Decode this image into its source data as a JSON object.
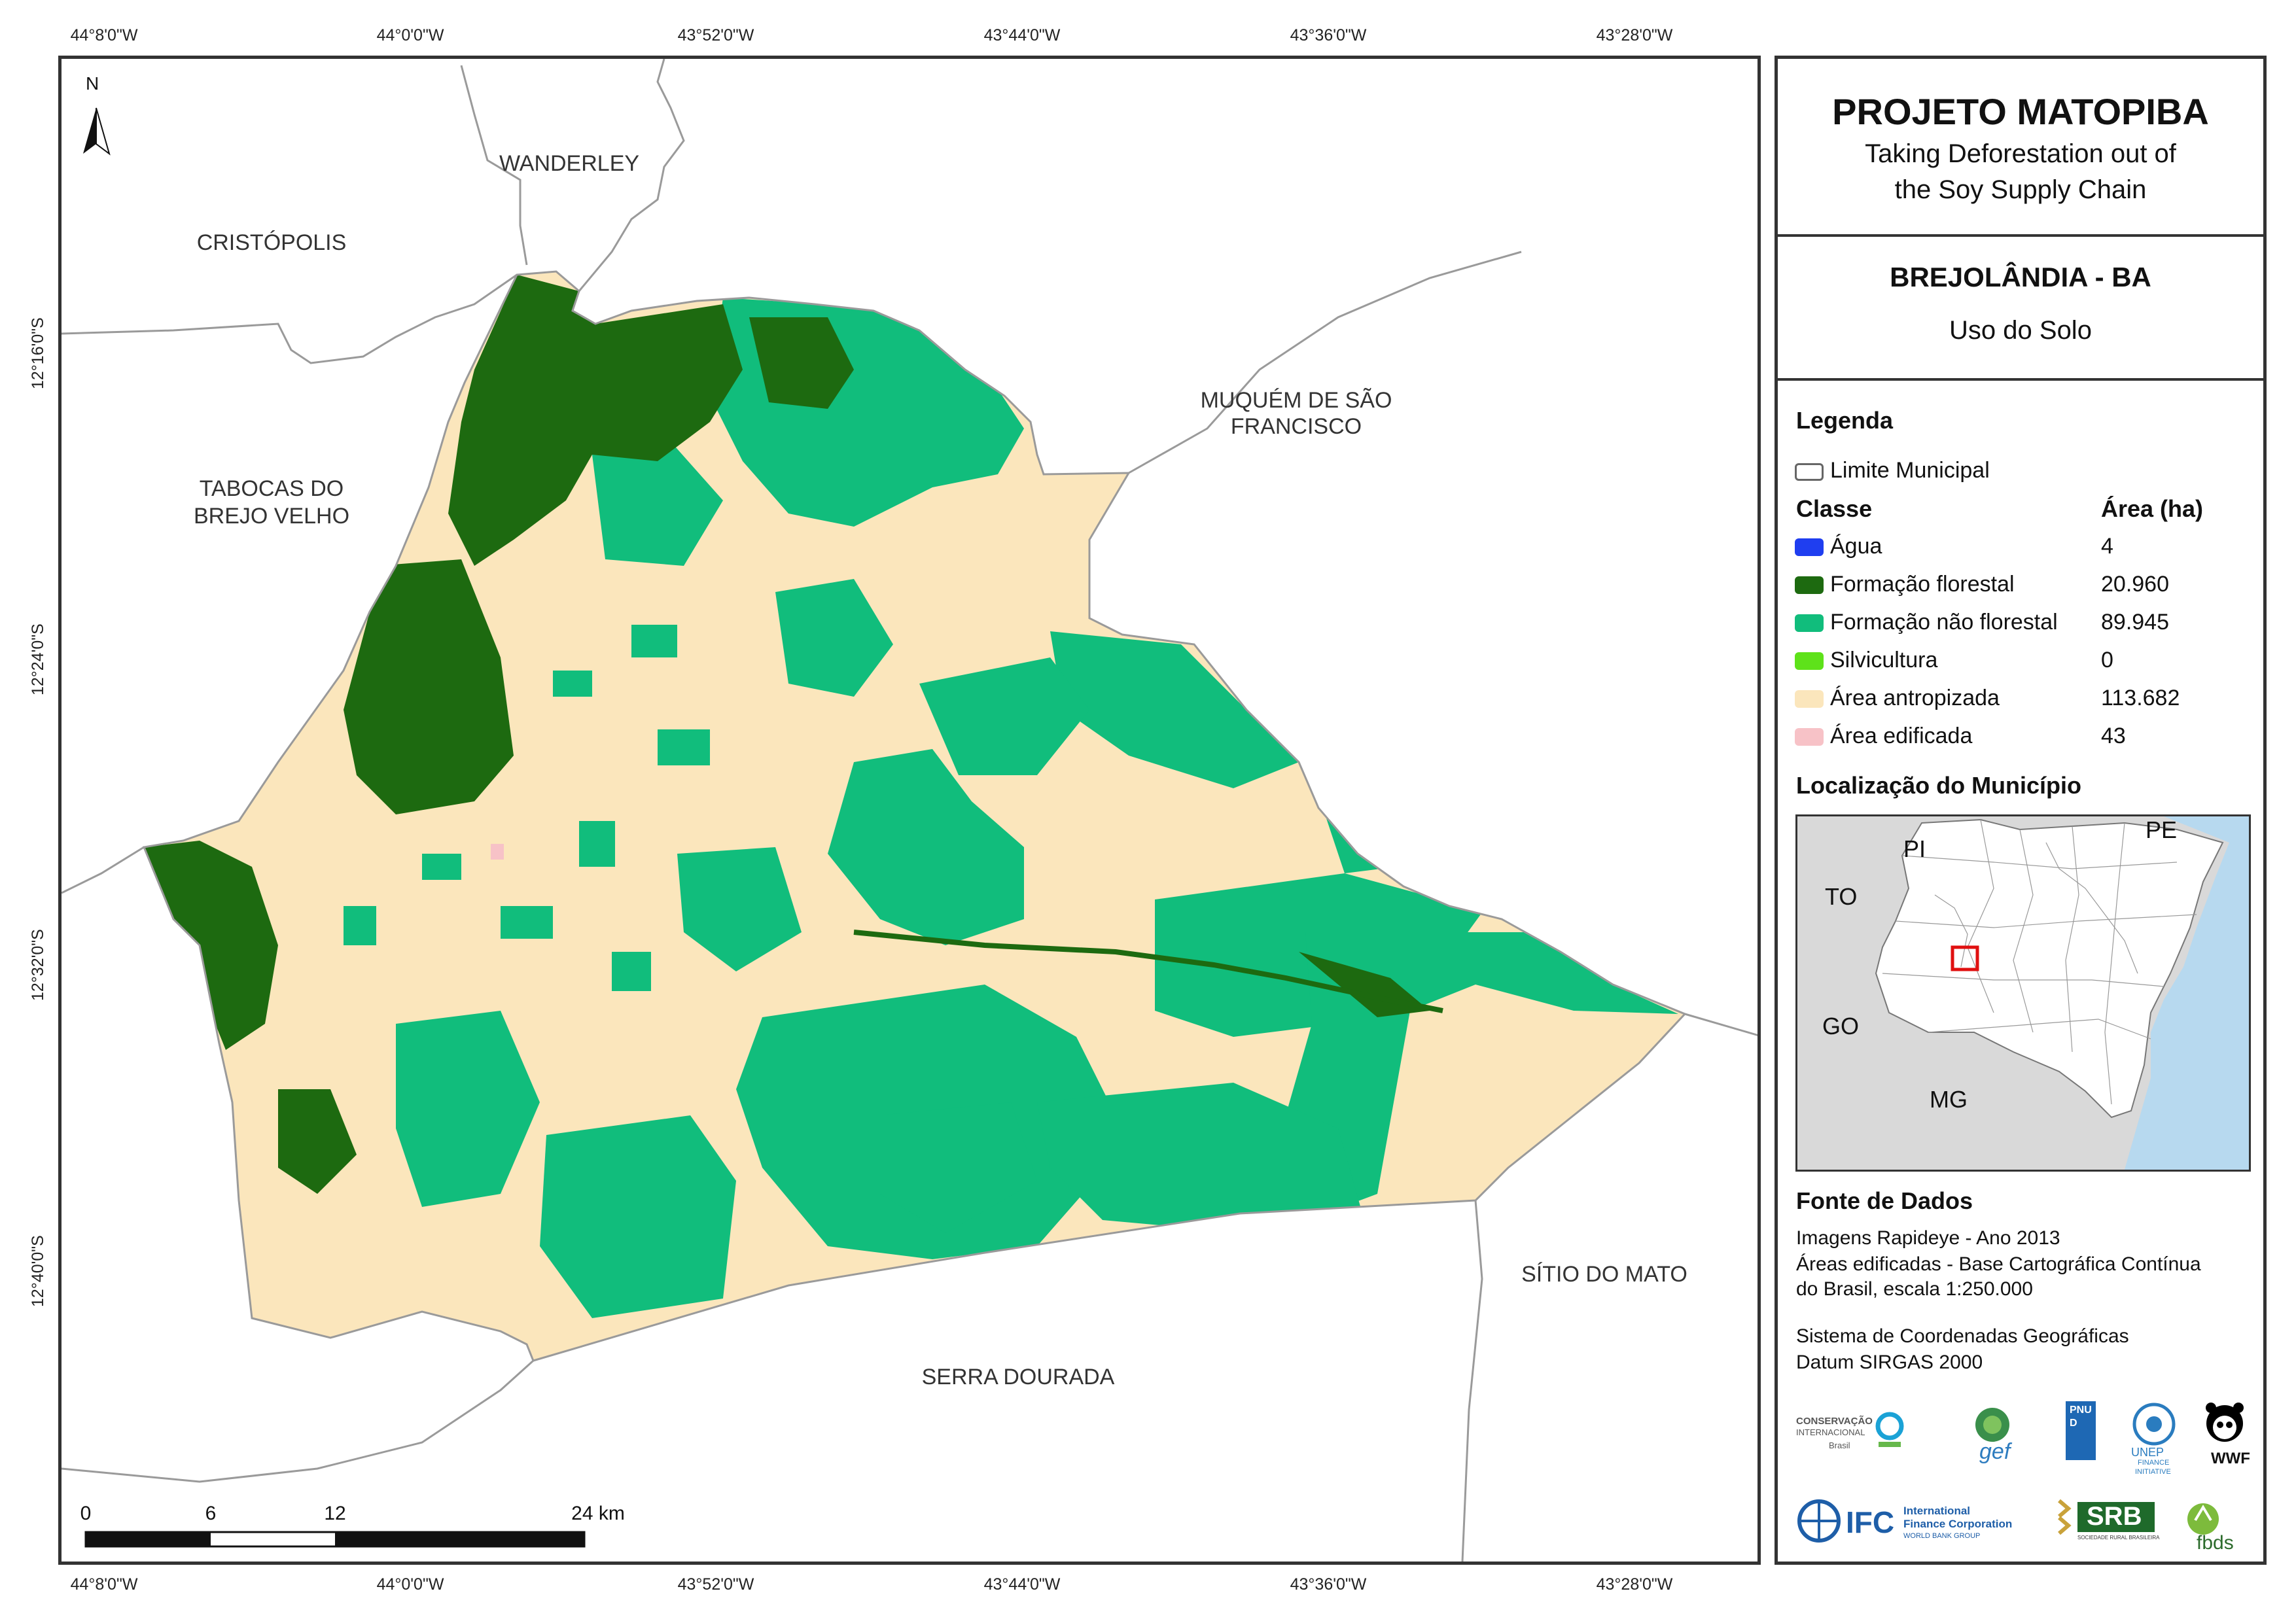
{
  "title": "PROJETO MATOPIBA",
  "subtitle_line1": "Taking Deforestation out of",
  "subtitle_line2": "the Soy Supply Chain",
  "municipality": "BREJOLÂNDIA - BA",
  "theme": "Uso do Solo",
  "legend": {
    "heading": "Legenda",
    "boundary_label": "Limite Municipal",
    "class_header": "Classe",
    "area_header": "Área (ha)",
    "classes": [
      {
        "label": "Água",
        "area": "4",
        "color": "#1f3ef0"
      },
      {
        "label": "Formação florestal",
        "area": "20.960",
        "color": "#1d6a10"
      },
      {
        "label": "Formação não florestal",
        "area": "89.945",
        "color": "#11bd7c"
      },
      {
        "label": "Silvicultura",
        "area": "0",
        "color": "#5ee21a"
      },
      {
        "label": "Área antropizada",
        "area": "113.682",
        "color": "#fbe6bc"
      },
      {
        "label": "Área edificada",
        "area": "43",
        "color": "#f7c2c7"
      }
    ]
  },
  "location": {
    "heading": "Localização do Município",
    "labels": [
      "PI",
      "PE",
      "TO",
      "GO",
      "MG"
    ]
  },
  "sources": {
    "heading": "Fonte de Dados",
    "line1": "Imagens Rapideye - Ano 2013",
    "line2": "Áreas edificadas - Base Cartográfica Contínua",
    "line3": "do Brasil, escala 1:250.000",
    "line4": "Sistema de Coordenadas Geográficas",
    "line5": "Datum SIRGAS 2000"
  },
  "neighbors": [
    "WANDERLEY",
    "CRISTÓPOLIS",
    "TABOCAS DO",
    "BREJO VELHO",
    "MUQUÉM DE SÃO",
    "FRANCISCO",
    "SÍTIO DO MATO",
    "SERRA DOURADA"
  ],
  "north_arrow": "N",
  "scale": [
    "0",
    "6",
    "12",
    "24 km"
  ],
  "coords": {
    "lon": [
      "44°8'0\"W",
      "44°0'0\"W",
      "43°52'0\"W",
      "43°44'0\"W",
      "43°36'0\"W",
      "43°28'0\"W"
    ],
    "lat": [
      "12°16'0\"S",
      "12°24'0\"S",
      "12°32'0\"S",
      "12°40'0\"S"
    ]
  },
  "logos": {
    "ci": "CONSERVAÇÃO",
    "ci2": "INTERNACIONAL",
    "ci3": "Brasil",
    "gef": "gef",
    "pnud": "PNUD",
    "unep": "UNEP",
    "unep2": "FINANCE",
    "unep3": "INITIATIVE",
    "wwf": "WWF",
    "ifc": "IFC",
    "ifc_text1": "International",
    "ifc_text2": "Finance Corporation",
    "ifc_text3": "WORLD BANK GROUP",
    "srb": "SRB",
    "srb_text": "SOCIEDADE RURAL BRASILEIRA",
    "fbds": "fbds"
  }
}
